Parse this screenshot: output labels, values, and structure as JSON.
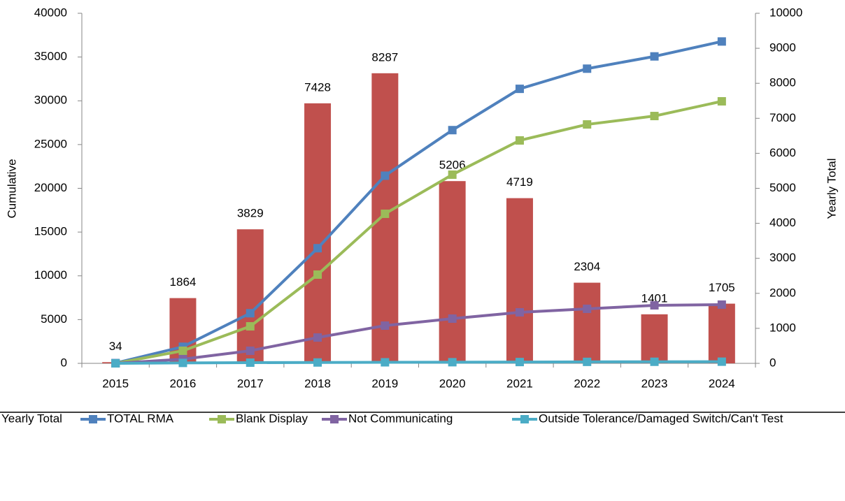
{
  "chart_data": {
    "type": "combo",
    "categories": [
      "2015",
      "2016",
      "2017",
      "2018",
      "2019",
      "2020",
      "2021",
      "2022",
      "2023",
      "2024"
    ],
    "y_label": "Cumulative",
    "y2_label": "Yearly Total",
    "ylim": [
      0,
      40000
    ],
    "yticks": [
      0,
      5000,
      10000,
      15000,
      20000,
      25000,
      30000,
      35000,
      40000
    ],
    "y2lim": [
      0,
      10000
    ],
    "y2ticks": [
      0,
      1000,
      2000,
      3000,
      4000,
      5000,
      6000,
      7000,
      8000,
      9000,
      10000
    ],
    "legend": "bottom",
    "series": [
      {
        "name": "Yearly Total",
        "type": "bar",
        "axis": "y2",
        "color": "#c0504d",
        "values": [
          34,
          1864,
          3829,
          7428,
          8287,
          5206,
          4719,
          2304,
          1401,
          1705
        ]
      },
      {
        "name": "TOTAL RMA",
        "type": "line",
        "color": "#4f81bd",
        "values": [
          34,
          1898,
          5727,
          13155,
          21442,
          26648,
          31367,
          33671,
          35072,
          36777
        ]
      },
      {
        "name": "Blank Display",
        "type": "line",
        "color": "#9bbb59",
        "values": [
          0,
          1440,
          4230,
          10140,
          17090,
          21560,
          25470,
          27300,
          28260,
          29940
        ]
      },
      {
        "name": "Not Communicating",
        "type": "line",
        "color": "#8064a2",
        "values": [
          0,
          480,
          1440,
          2950,
          4310,
          5110,
          5830,
          6230,
          6630,
          6710
        ]
      },
      {
        "name": "Outside Tolerance/Damaged Switch/Can't Test",
        "type": "line",
        "color": "#4bacc6",
        "values": [
          0,
          50,
          80,
          100,
          120,
          130,
          150,
          170,
          180,
          190
        ]
      }
    ]
  }
}
